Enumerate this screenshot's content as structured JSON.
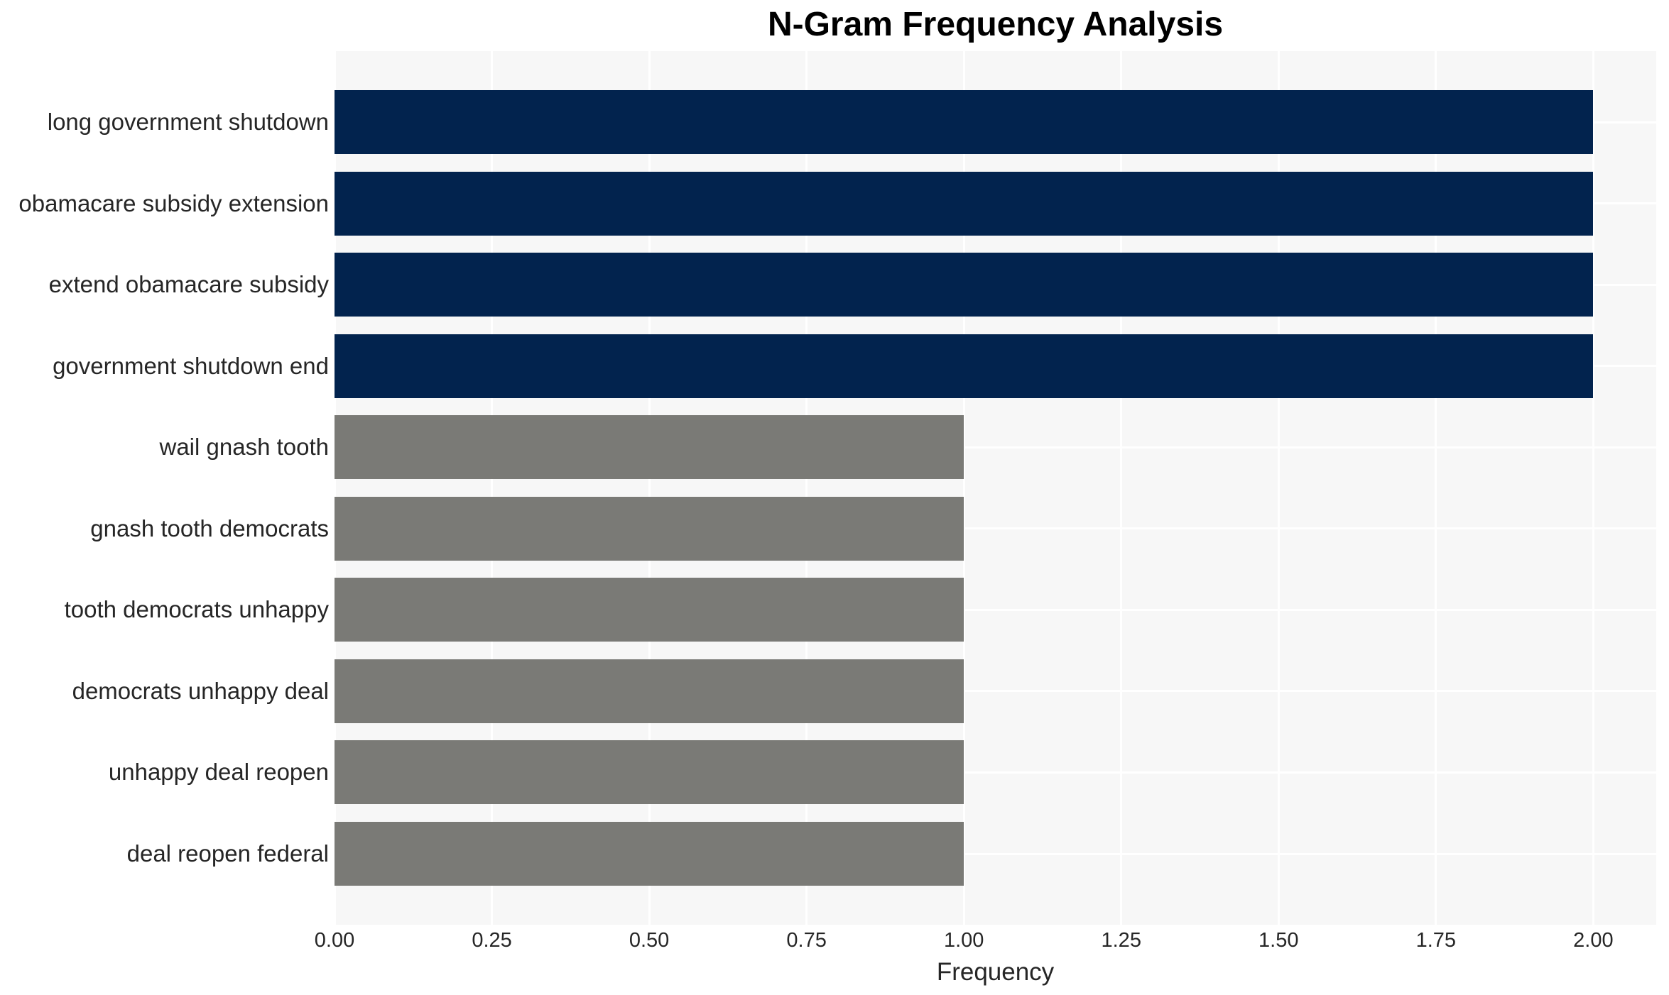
{
  "page": {
    "title": "N-Gram Frequency Analysis"
  },
  "chart_data": {
    "type": "bar",
    "orientation": "horizontal",
    "title": "N-Gram Frequency Analysis",
    "xlabel": "Frequency",
    "ylabel": "",
    "categories": [
      "long government shutdown",
      "obamacare subsidy extension",
      "extend obamacare subsidy",
      "government shutdown end",
      "wail gnash tooth",
      "gnash tooth democrats",
      "tooth democrats unhappy",
      "democrats unhappy deal",
      "unhappy deal reopen",
      "deal reopen federal"
    ],
    "values": [
      2,
      2,
      2,
      2,
      1,
      1,
      1,
      1,
      1,
      1
    ],
    "bar_colors": [
      "#02234e",
      "#02234e",
      "#02234e",
      "#02234e",
      "#7a7a76",
      "#7a7a76",
      "#7a7a76",
      "#7a7a76",
      "#7a7a76",
      "#7a7a76"
    ],
    "xlim": [
      0,
      2.1
    ],
    "xticks": [
      0,
      0.25,
      0.5,
      0.75,
      1.0,
      1.25,
      1.5,
      1.75,
      2.0
    ],
    "xtick_labels": [
      "0.00",
      "0.25",
      "0.50",
      "0.75",
      "1.00",
      "1.25",
      "1.50",
      "1.75",
      "2.00"
    ],
    "grid": true,
    "grid_color": "#ffffff",
    "plot_background": "#f7f7f7",
    "legend": null
  },
  "style": {
    "accent_navy": "#02234e",
    "accent_gray": "#7a7a76",
    "text_color": "#262626",
    "title_color": "#000000"
  }
}
